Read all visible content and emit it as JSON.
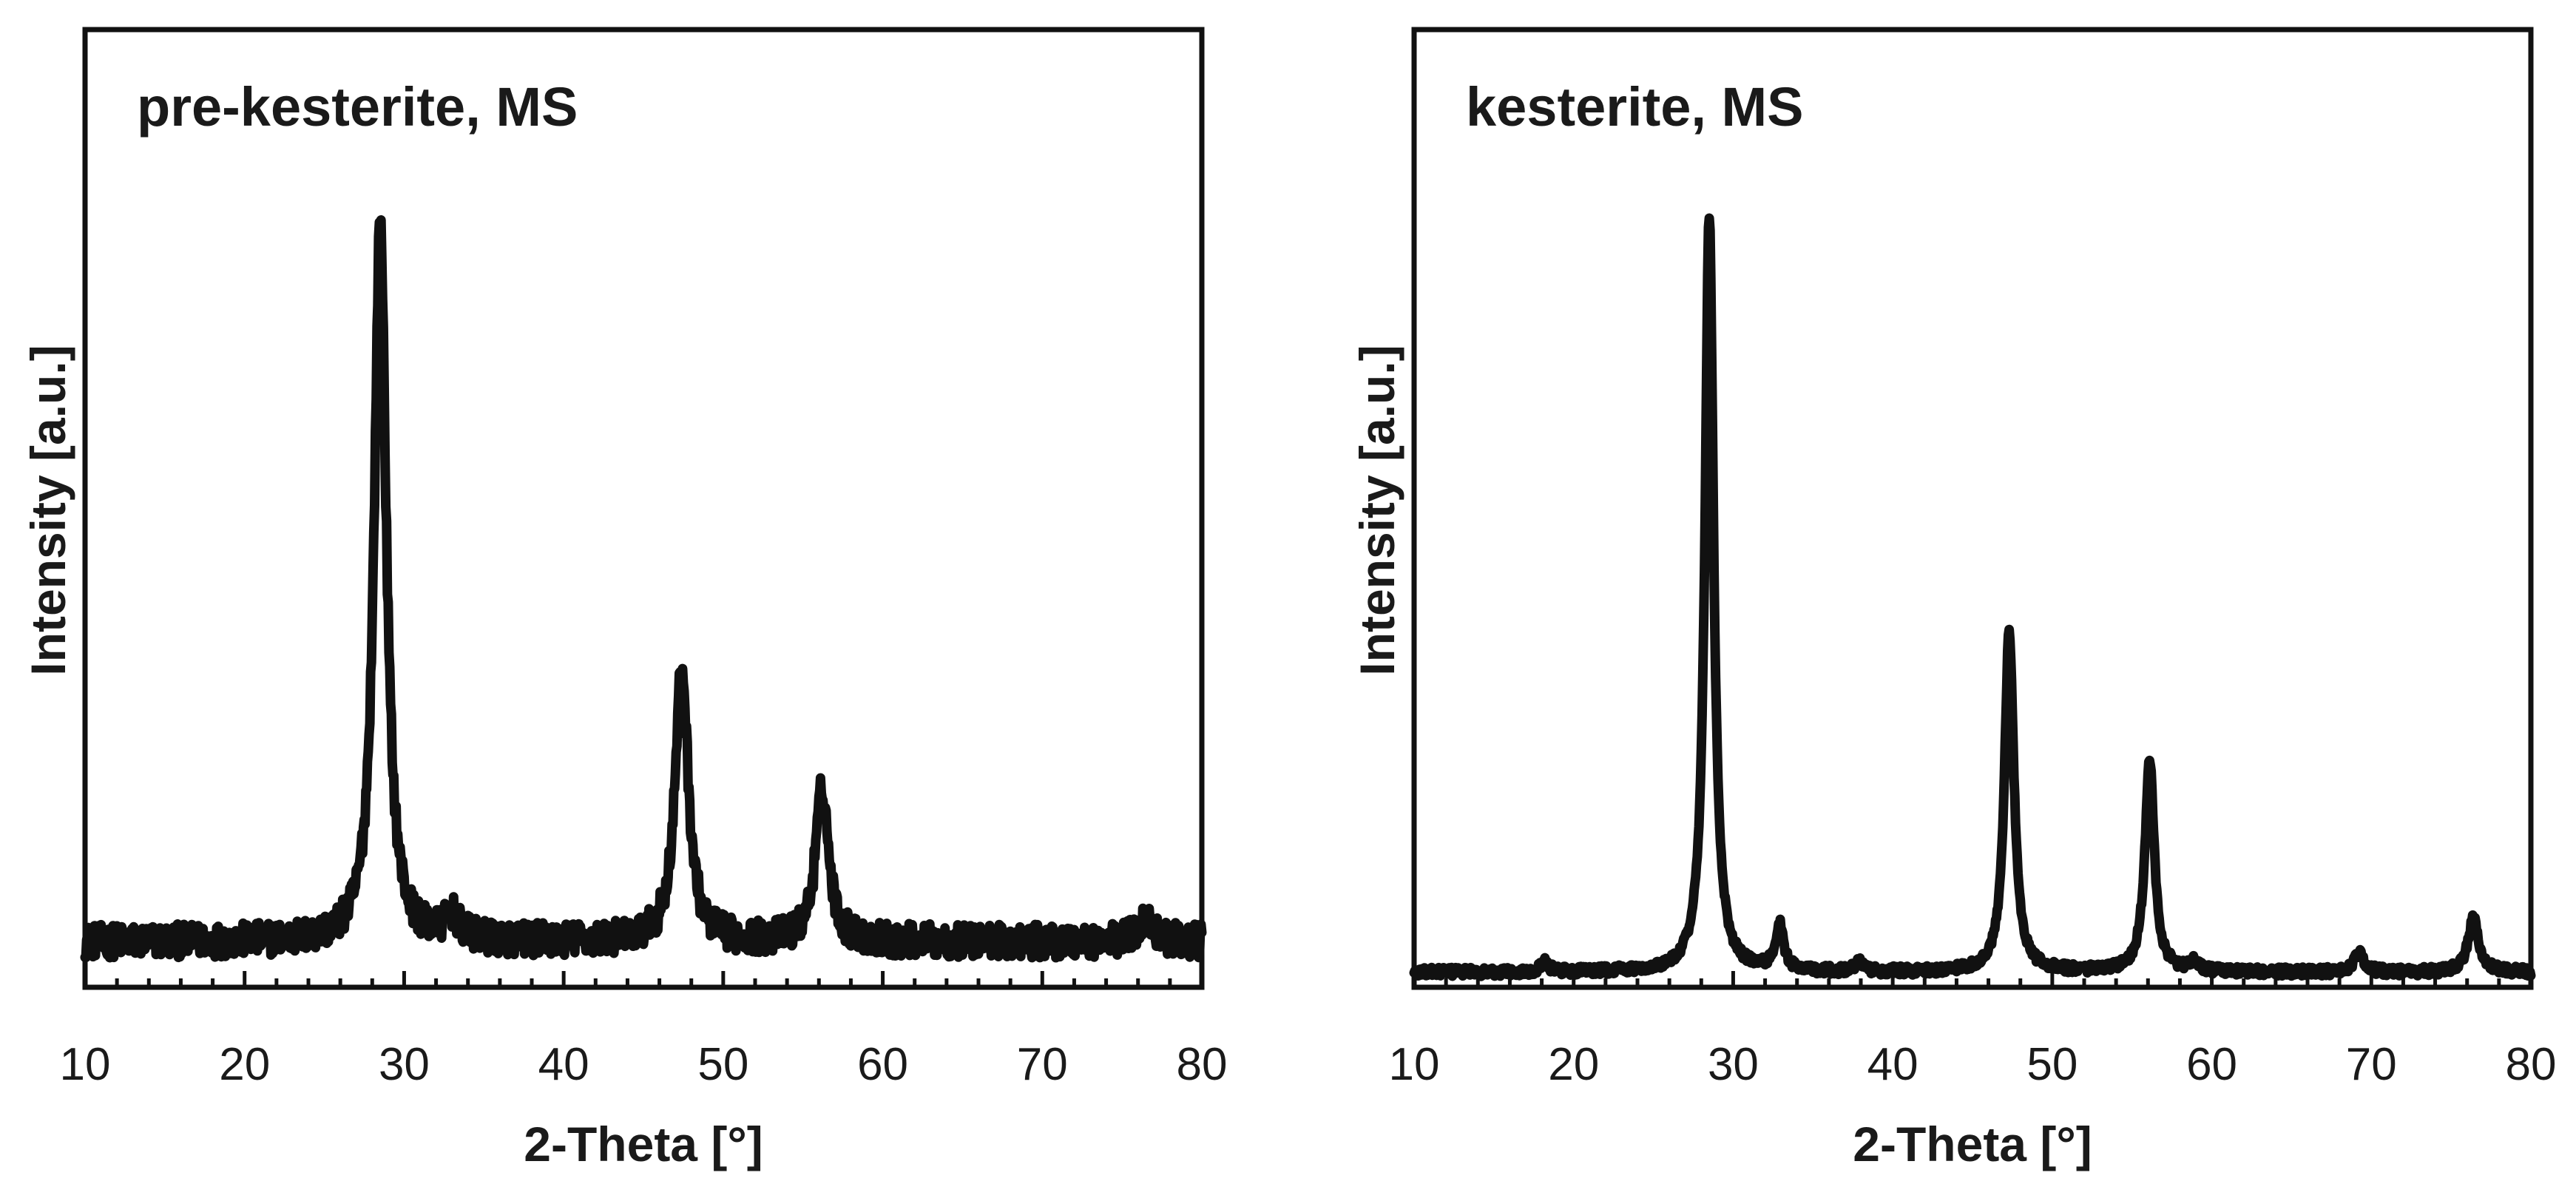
{
  "chart_data": [
    {
      "type": "line",
      "title": "pre-kesterite, MS",
      "xlabel": "2-Theta [°]",
      "ylabel": "Intensity [a.u.]",
      "xlim": [
        10,
        80
      ],
      "ylim": [
        0,
        100
      ],
      "xticks": [
        "10",
        "20",
        "30",
        "40",
        "50",
        "60",
        "70",
        "80"
      ],
      "noise_amplitude": 2.2,
      "baseline": 5,
      "peaks": [
        {
          "x": 28.5,
          "height": 95,
          "width": 0.45
        },
        {
          "x": 33.0,
          "height": 3,
          "width": 0.5
        },
        {
          "x": 47.4,
          "height": 36,
          "width": 0.5
        },
        {
          "x": 56.2,
          "height": 20,
          "width": 0.5
        },
        {
          "x": 76.5,
          "height": 3,
          "width": 0.6
        }
      ]
    },
    {
      "type": "line",
      "title": "kesterite, MS",
      "xlabel": "2-Theta [°]",
      "ylabel": "Intensity [a.u.]",
      "xlim": [
        10,
        80
      ],
      "ylim": [
        0,
        100
      ],
      "xticks": [
        "10",
        "20",
        "30",
        "40",
        "50",
        "60",
        "70",
        "80"
      ],
      "noise_amplitude": 0.6,
      "baseline": 1,
      "peaks": [
        {
          "x": 18.2,
          "height": 1.5,
          "width": 0.25
        },
        {
          "x": 28.5,
          "height": 100,
          "width": 0.32
        },
        {
          "x": 32.9,
          "height": 6,
          "width": 0.3
        },
        {
          "x": 37.9,
          "height": 1.2,
          "width": 0.3
        },
        {
          "x": 47.3,
          "height": 45,
          "width": 0.35
        },
        {
          "x": 56.1,
          "height": 28,
          "width": 0.35
        },
        {
          "x": 58.9,
          "height": 1.5,
          "width": 0.25
        },
        {
          "x": 69.2,
          "height": 2.5,
          "width": 0.35
        },
        {
          "x": 76.4,
          "height": 7,
          "width": 0.4
        }
      ]
    }
  ]
}
